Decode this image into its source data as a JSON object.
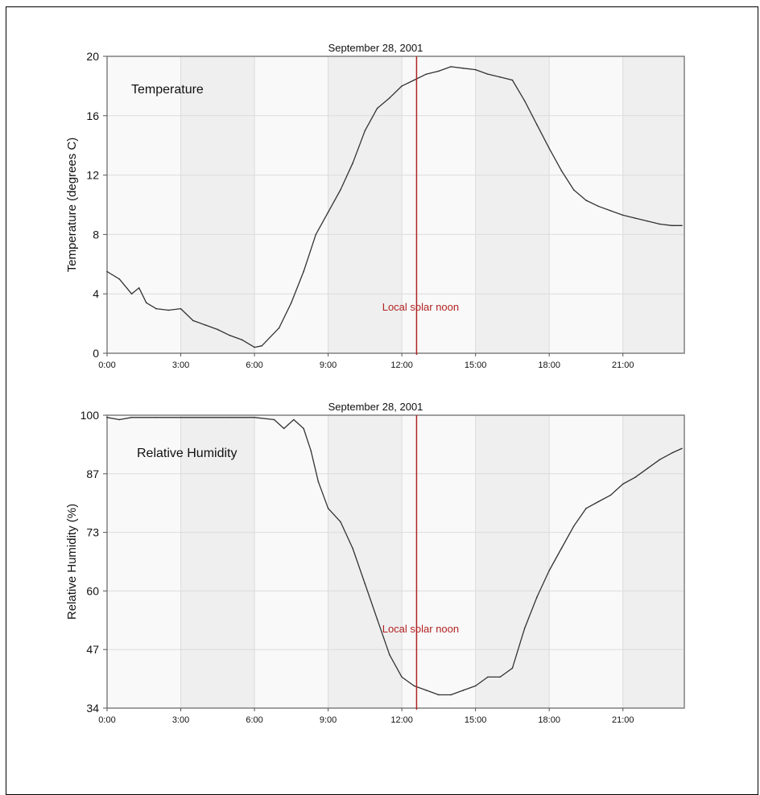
{
  "chart_data": [
    {
      "type": "line",
      "title": "September 28, 2001",
      "annotation": "Temperature",
      "ylabel": "Temperature (degrees C)",
      "xlabel": "",
      "x_ticks": [
        "0:00",
        "3:00",
        "6:00",
        "9:00",
        "12:00",
        "15:00",
        "18:00",
        "21:00"
      ],
      "xlim": [
        0,
        23.5
      ],
      "y_ticks": [
        "0",
        "4",
        "8",
        "12",
        "16",
        "20"
      ],
      "ylim": [
        0,
        20
      ],
      "marker": {
        "x": 12.6,
        "label": "Local solar noon"
      },
      "grid": true,
      "x": [
        0,
        0.5,
        1.0,
        1.3,
        1.6,
        2.0,
        2.5,
        3.0,
        3.5,
        4.0,
        4.5,
        5.0,
        5.5,
        6.0,
        6.3,
        7.0,
        7.5,
        8.0,
        8.5,
        9.0,
        9.5,
        10.0,
        10.5,
        11.0,
        11.5,
        12.0,
        12.5,
        13.0,
        13.5,
        14.0,
        14.5,
        15.0,
        15.5,
        16.0,
        16.5,
        17.0,
        17.5,
        18.0,
        18.5,
        19.0,
        19.5,
        20.0,
        20.5,
        21.0,
        21.5,
        22.0,
        22.5,
        23.0,
        23.4
      ],
      "y": [
        5.5,
        5.0,
        4.0,
        4.4,
        3.4,
        3.0,
        2.9,
        3.0,
        2.2,
        1.9,
        1.6,
        1.2,
        0.9,
        0.4,
        0.5,
        1.7,
        3.4,
        5.5,
        8.0,
        9.5,
        11.0,
        12.8,
        15.0,
        16.5,
        17.2,
        18.0,
        18.4,
        18.8,
        19.0,
        19.3,
        19.2,
        19.1,
        18.8,
        18.6,
        18.4,
        17.0,
        15.4,
        13.8,
        12.3,
        11.0,
        10.3,
        9.9,
        9.6,
        9.3,
        9.1,
        8.9,
        8.7,
        8.6,
        8.6
      ]
    },
    {
      "type": "line",
      "title": "September 28, 2001",
      "annotation": "Relative Humidity",
      "ylabel": "Relative Humidity (%)",
      "xlabel": "",
      "x_ticks": [
        "0:00",
        "3:00",
        "6:00",
        "9:00",
        "12:00",
        "15:00",
        "18:00",
        "21:00"
      ],
      "xlim": [
        0,
        23.5
      ],
      "y_ticks": [
        "34",
        "47",
        "60",
        "73",
        "87",
        "100"
      ],
      "ylim": [
        34,
        100
      ],
      "marker": {
        "x": 12.6,
        "label": "Local solar noon"
      },
      "grid": true,
      "x": [
        0,
        0.5,
        1.0,
        2.0,
        3.0,
        4.0,
        5.0,
        6.0,
        6.8,
        7.2,
        7.6,
        8.0,
        8.3,
        8.6,
        9.0,
        9.5,
        10.0,
        10.5,
        11.0,
        11.5,
        12.0,
        12.5,
        13.0,
        13.5,
        14.0,
        14.5,
        15.0,
        15.5,
        16.0,
        16.5,
        17.0,
        17.5,
        18.0,
        18.5,
        19.0,
        19.5,
        20.0,
        20.5,
        21.0,
        21.5,
        22.0,
        22.5,
        23.0,
        23.4
      ],
      "y": [
        99.5,
        99,
        99.5,
        99.5,
        99.5,
        99.5,
        99.5,
        99.5,
        99,
        97,
        99,
        97,
        92,
        85,
        79,
        76,
        70,
        62,
        54,
        46,
        41,
        39,
        38,
        37,
        37,
        38,
        39,
        41,
        41,
        43,
        52,
        59,
        65,
        70,
        75,
        79,
        80.5,
        82,
        84.5,
        86,
        88,
        90,
        91.5,
        92.5
      ]
    }
  ]
}
